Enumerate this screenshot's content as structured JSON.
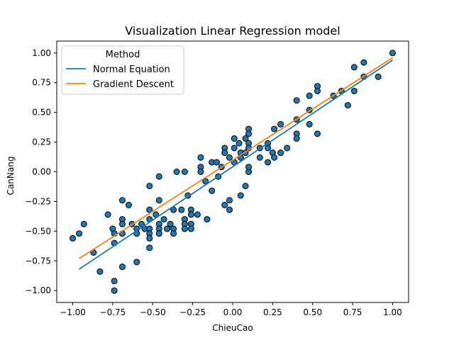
{
  "chart_data": {
    "type": "scatter",
    "title": "Visualization Linear Regression model",
    "xlabel": "ChieuCao",
    "ylabel": "CanNang",
    "xlim": [
      -1.1,
      1.1
    ],
    "ylim": [
      -1.1,
      1.1
    ],
    "xticks": [
      -1.0,
      -0.75,
      -0.5,
      -0.25,
      0.0,
      0.25,
      0.5,
      0.75,
      1.0
    ],
    "xtick_labels": [
      "−1.00",
      "−0.75",
      "−0.50",
      "−0.25",
      "0.00",
      "0.25",
      "0.50",
      "0.75",
      "1.00"
    ],
    "yticks": [
      -1.0,
      -0.75,
      -0.5,
      -0.25,
      0.0,
      0.25,
      0.5,
      0.75,
      1.0
    ],
    "ytick_labels": [
      "−1.00",
      "−0.75",
      "−0.50",
      "−0.25",
      "0.00",
      "0.25",
      "0.50",
      "0.75",
      "1.00"
    ],
    "grid": false,
    "legend": {
      "title": "Method",
      "placement": "upper-left",
      "entries": [
        "Normal Equation",
        "Gradient Descent"
      ]
    },
    "points_color": "#1f77b4",
    "points": [
      [
        -1.0,
        -0.56
      ],
      [
        -0.96,
        -0.52
      ],
      [
        -0.93,
        -0.44
      ],
      [
        -0.87,
        -0.68
      ],
      [
        -0.83,
        -0.84
      ],
      [
        -0.78,
        -0.36
      ],
      [
        -0.75,
        -0.48
      ],
      [
        -0.74,
        -0.52
      ],
      [
        -0.74,
        -0.6
      ],
      [
        -0.74,
        -0.92
      ],
      [
        -0.74,
        -1.0
      ],
      [
        -0.69,
        -0.24
      ],
      [
        -0.69,
        -0.4
      ],
      [
        -0.69,
        -0.44
      ],
      [
        -0.69,
        -0.52
      ],
      [
        -0.69,
        -0.8
      ],
      [
        -0.65,
        -0.28
      ],
      [
        -0.63,
        -0.44
      ],
      [
        -0.6,
        -0.48
      ],
      [
        -0.6,
        -0.52
      ],
      [
        -0.6,
        -0.76
      ],
      [
        -0.57,
        -0.44
      ],
      [
        -0.55,
        -0.48
      ],
      [
        -0.52,
        -0.12
      ],
      [
        -0.52,
        -0.32
      ],
      [
        -0.52,
        -0.4
      ],
      [
        -0.52,
        -0.48
      ],
      [
        -0.52,
        -0.52
      ],
      [
        -0.52,
        -0.56
      ],
      [
        -0.52,
        -0.64
      ],
      [
        -0.48,
        -0.36
      ],
      [
        -0.46,
        -0.04
      ],
      [
        -0.46,
        -0.24
      ],
      [
        -0.46,
        -0.44
      ],
      [
        -0.46,
        -0.48
      ],
      [
        -0.46,
        -0.52
      ],
      [
        -0.43,
        -0.4
      ],
      [
        -0.41,
        -0.48
      ],
      [
        -0.39,
        -0.44
      ],
      [
        -0.37,
        -0.32
      ],
      [
        -0.37,
        -0.48
      ],
      [
        -0.37,
        -0.52
      ],
      [
        -0.35,
        0.0
      ],
      [
        -0.32,
        -0.32
      ],
      [
        -0.3,
        -0.4
      ],
      [
        -0.3,
        0.0
      ],
      [
        -0.3,
        -0.44
      ],
      [
        -0.3,
        -0.48
      ],
      [
        -0.28,
        -0.2
      ],
      [
        -0.26,
        -0.32
      ],
      [
        -0.26,
        -0.36
      ],
      [
        -0.26,
        -0.44
      ],
      [
        -0.26,
        -0.48
      ],
      [
        -0.22,
        -0.36
      ],
      [
        -0.2,
        0.12
      ],
      [
        -0.2,
        0.04
      ],
      [
        -0.2,
        0.0
      ],
      [
        -0.17,
        -0.08
      ],
      [
        -0.16,
        -0.4
      ],
      [
        -0.13,
        0.08
      ],
      [
        -0.13,
        -0.16
      ],
      [
        -0.1,
        0.08
      ],
      [
        -0.09,
        -0.04
      ],
      [
        -0.07,
        0.04
      ],
      [
        -0.05,
        0.2
      ],
      [
        -0.05,
        0.16
      ],
      [
        -0.05,
        -0.28
      ],
      [
        -0.02,
        0.12
      ],
      [
        -0.02,
        -0.24
      ],
      [
        -0.02,
        -0.32
      ],
      [
        0.01,
        0.28
      ],
      [
        0.01,
        0.2
      ],
      [
        0.01,
        0.08
      ],
      [
        0.04,
        0.24
      ],
      [
        0.05,
        0.16
      ],
      [
        0.05,
        0.12
      ],
      [
        0.05,
        -0.2
      ],
      [
        0.08,
        0.16
      ],
      [
        0.08,
        -0.12
      ],
      [
        0.08,
        0.28
      ],
      [
        0.1,
        0.0
      ],
      [
        0.1,
        0.04
      ],
      [
        0.1,
        0.36
      ],
      [
        0.1,
        0.32
      ],
      [
        0.1,
        0.24
      ],
      [
        0.1,
        0.2
      ],
      [
        0.17,
        0.2
      ],
      [
        0.17,
        0.12
      ],
      [
        0.22,
        0.24
      ],
      [
        0.22,
        0.08
      ],
      [
        0.22,
        0.2
      ],
      [
        0.25,
        0.16
      ],
      [
        0.26,
        0.36
      ],
      [
        0.26,
        0.12
      ],
      [
        0.3,
        0.4
      ],
      [
        0.3,
        0.16
      ],
      [
        0.34,
        0.2
      ],
      [
        0.4,
        0.6
      ],
      [
        0.4,
        0.44
      ],
      [
        0.4,
        0.32
      ],
      [
        0.4,
        0.28
      ],
      [
        0.48,
        0.64
      ],
      [
        0.48,
        0.52
      ],
      [
        0.48,
        0.4
      ],
      [
        0.53,
        0.72
      ],
      [
        0.53,
        0.68
      ],
      [
        0.53,
        0.32
      ],
      [
        0.63,
        0.64
      ],
      [
        0.68,
        0.68
      ],
      [
        0.72,
        0.56
      ],
      [
        0.76,
        0.88
      ],
      [
        0.76,
        0.68
      ],
      [
        0.82,
        0.92
      ],
      [
        0.82,
        0.8
      ],
      [
        0.91,
        0.8
      ],
      [
        1.0,
        1.0
      ]
    ],
    "series": [
      {
        "name": "Normal Equation",
        "color": "#1f77b4",
        "x": [
          -0.96,
          1.0
        ],
        "y": [
          -0.82,
          0.94
        ]
      },
      {
        "name": "Gradient Descent",
        "color": "#ff7f0e",
        "x": [
          -0.96,
          1.0
        ],
        "y": [
          -0.73,
          0.96
        ]
      }
    ]
  }
}
